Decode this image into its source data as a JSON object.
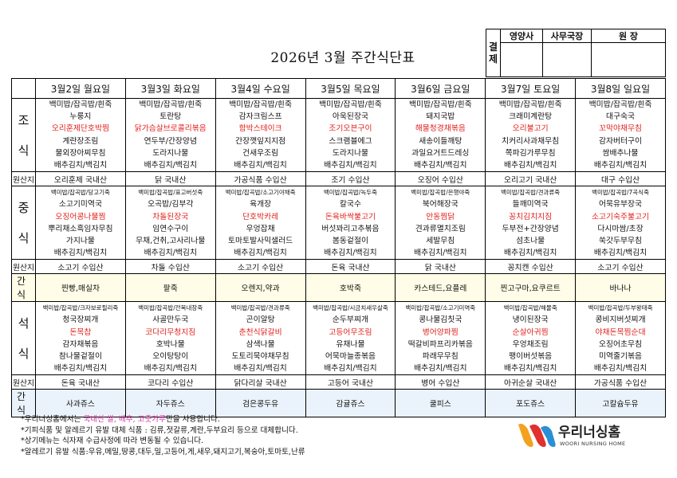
{
  "title": "2026년 3월 주간식단표",
  "approval": {
    "label": "결 제",
    "roles": [
      "영양사",
      "사무국장",
      "원 장"
    ]
  },
  "days": [
    "3월2일 월요일",
    "3월3일 화요일",
    "3월4일 수요일",
    "3월5일 목요일",
    "3월6일 금요일",
    "3월7일 토요일",
    "3월8일 일요일"
  ],
  "meals": {
    "breakfast": {
      "label": [
        "조",
        "식"
      ],
      "cols": [
        [
          {
            "t": "백미밥/잡곡밥/흰죽"
          },
          {
            "t": "누룽지"
          },
          {
            "t": "오리훈제단호박찜",
            "red": true
          },
          {
            "t": "계란장조림"
          },
          {
            "t": "물외장아찌무침"
          },
          {
            "t": "배추김치/백김치"
          }
        ],
        [
          {
            "t": "백미밥/잡곡밥/흰죽"
          },
          {
            "t": "토란탕"
          },
          {
            "t": "닭가슴살브로콜리볶음",
            "red": true
          },
          {
            "t": "연두부/간장양념"
          },
          {
            "t": "도라지나물"
          },
          {
            "t": "배추김치/백김치"
          }
        ],
        [
          {
            "t": "백미밥/잡곡밥/흰죽"
          },
          {
            "t": "감자크림스프"
          },
          {
            "t": "함박스테이크",
            "red": true
          },
          {
            "t": "간장깻잎지지점"
          },
          {
            "t": "건새우조림"
          },
          {
            "t": "배추김치/백김치"
          }
        ],
        [
          {
            "t": "백미밥/잡곡밥/흰죽"
          },
          {
            "t": "아욱된장국"
          },
          {
            "t": "조기오븐구이",
            "red": true
          },
          {
            "t": "스크램블에그"
          },
          {
            "t": "도라지나물"
          },
          {
            "t": "배추김치/백김치"
          }
        ],
        [
          {
            "t": "백미밥/잡곡밥/흰죽"
          },
          {
            "t": "돼지국밥"
          },
          {
            "t": "해물청경채볶음",
            "red": true
          },
          {
            "t": "새송이들깨탕"
          },
          {
            "t": "과일요거트드레싱"
          },
          {
            "t": "배추김치/백김치"
          }
        ],
        [
          {
            "t": "백미밥/잡곡밥/흰죽"
          },
          {
            "t": "크래미계란탕"
          },
          {
            "t": "오리불고기",
            "red": true
          },
          {
            "t": "치커리사과채무침"
          },
          {
            "t": "쪽파김가루무침"
          },
          {
            "t": "배추김치/백김치"
          }
        ],
        [
          {
            "t": "백미밥/잡곡밥/흰죽"
          },
          {
            "t": "대구숙국"
          },
          {
            "t": "꼬막야채무침",
            "red": true
          },
          {
            "t": "감자버터구이"
          },
          {
            "t": "쌈배추나물"
          },
          {
            "t": "배추김치/백김치"
          }
        ]
      ],
      "origin": [
        "오리훈제 국내산",
        "닭 국내산",
        "가공식품 수입산",
        "조기 수입산",
        "오징어 수입산",
        "오리고기 국내산",
        "대구 수입산"
      ]
    },
    "lunch": {
      "label": [
        "중",
        "식"
      ],
      "cols": [
        [
          {
            "t": "백미밥/잡곡밥/당고기죽",
            "small": true
          },
          {
            "t": "소고기미역국"
          },
          {
            "t": "오징어콩나물찜",
            "red": true
          },
          {
            "t": "뿌리채소흑임자무침"
          },
          {
            "t": "가지나물"
          },
          {
            "t": "배추김치/백김치"
          }
        ],
        [
          {
            "t": "백미밥/잡곡밥/표고버섯죽",
            "small": true
          },
          {
            "t": "오곡밥/김부각"
          },
          {
            "t": "차돌된장국",
            "red": true
          },
          {
            "t": "임연수구이"
          },
          {
            "t": "무채,건취,고사리나물"
          },
          {
            "t": "배추김치/백김치"
          }
        ],
        [
          {
            "t": "백미밥/잡곡밥/소고기야채죽",
            "small": true
          },
          {
            "t": "육개장"
          },
          {
            "t": "단호박카레",
            "red": true
          },
          {
            "t": "우엉잡채"
          },
          {
            "t": "토마토발사믹샐러드",
            "small": false
          },
          {
            "t": "배추김치/백김치"
          }
        ],
        [
          {
            "t": "백미밥/잡곡밥/녹두죽",
            "small": true
          },
          {
            "t": "칼국수"
          },
          {
            "t": "돈육바싹불고기",
            "red": true
          },
          {
            "t": "버섯꽈리고추볶음"
          },
          {
            "t": "봄동겉절이"
          },
          {
            "t": "배추김치/백김치"
          }
        ],
        [
          {
            "t": "백미밥/잡곡밥/은행야죽",
            "small": true
          },
          {
            "t": "북어해장국"
          },
          {
            "t": "안동찜닭",
            "red": true
          },
          {
            "t": "견과류멸치조림"
          },
          {
            "t": "세발무침"
          },
          {
            "t": "배추김치/백김치"
          }
        ],
        [
          {
            "t": "백미밥/잡곡밥/견과류죽",
            "small": true
          },
          {
            "t": "들깨미역국"
          },
          {
            "t": "꽁치김치지짐",
            "red": true
          },
          {
            "t": "두부전+간장양념"
          },
          {
            "t": "섬초나물"
          },
          {
            "t": "배추김치/백김치"
          }
        ],
        [
          {
            "t": "백미밥/잡곡밥/7곡식죽",
            "small": true
          },
          {
            "t": "어묵유부장국"
          },
          {
            "t": "소고기숙주불고기",
            "red": true
          },
          {
            "t": "다시마쌈/초장"
          },
          {
            "t": "쑥갓두부무침"
          },
          {
            "t": "배추김치/백김치"
          }
        ]
      ],
      "origin": [
        "소고기 수입산",
        "차돌 수입산",
        "소고기 수입산",
        "돈육 국내산",
        "닭 국내산",
        "꽁치캔 수입산",
        "소고기 수입산"
      ]
    },
    "dinner": {
      "label": [
        "석",
        "식"
      ],
      "cols": [
        [
          {
            "t": "백미밥/잡곡밥/크자보로필리죽",
            "small": true
          },
          {
            "t": "청국장찌개"
          },
          {
            "t": "돈목찹",
            "red": true
          },
          {
            "t": "감자채볶음"
          },
          {
            "t": "참나물겉절이"
          },
          {
            "t": "배추김치/백김치"
          }
        ],
        [
          {
            "t": "백미밥/잡곡밥/전복내장죽",
            "small": true
          },
          {
            "t": "사골만두국"
          },
          {
            "t": "코다리무청지짐",
            "red": true
          },
          {
            "t": "호박나물"
          },
          {
            "t": "오이탕탕이"
          },
          {
            "t": "배추김치/백김치"
          }
        ],
        [
          {
            "t": "백미밥/잡곡밥/견과류죽",
            "small": true
          },
          {
            "t": "곤이알탕"
          },
          {
            "t": "춘천식닭갈비",
            "red": true
          },
          {
            "t": "삼색나물"
          },
          {
            "t": "도토리묵야채무침"
          },
          {
            "t": "배추김치/백김치"
          }
        ],
        [
          {
            "t": "백미밥/잡곡밥/시금치새우살죽",
            "small": true
          },
          {
            "t": "순두부찌개"
          },
          {
            "t": "고등어무조림",
            "red": true
          },
          {
            "t": "유채나물"
          },
          {
            "t": "어묵마늘종볶음"
          },
          {
            "t": "배추김치/백김치"
          }
        ],
        [
          {
            "t": "백미밥/잡곡밥/소고기미역죽",
            "small": true
          },
          {
            "t": "콩나물김칫국"
          },
          {
            "t": "병어양파찜",
            "red": true
          },
          {
            "t": "떡갈비파프리카볶음"
          },
          {
            "t": "파래무무침"
          },
          {
            "t": "배추김치/백김치"
          }
        ],
        [
          {
            "t": "백미밥/잡곡밥/해물죽",
            "small": true
          },
          {
            "t": "냉이된장국"
          },
          {
            "t": "순살아귀찜",
            "red": true
          },
          {
            "t": "우엉채조림"
          },
          {
            "t": "팽이버섯볶음"
          },
          {
            "t": "배추김치/백김치"
          }
        ],
        [
          {
            "t": "백미밥/잡곡밥/두부왕태죽",
            "small": true
          },
          {
            "t": "콩비지버섯찌개"
          },
          {
            "t": "야채돈목찜순대",
            "red": true
          },
          {
            "t": "오징어초무침"
          },
          {
            "t": "미역줄기볶음"
          },
          {
            "t": "배추김치/백김치"
          }
        ]
      ],
      "origin": [
        "돈육 국내산",
        "코다리 수입산",
        "닭다리살 국내산",
        "고등어 국내산",
        "병어 수입산",
        "아귀순살 국내산",
        "가공식품 수입산"
      ]
    }
  },
  "origin_label": "원산지",
  "snack_label": "간 식",
  "snack1": [
    "찐빵,매실차",
    "팥죽",
    "오렌지,약과",
    "호박죽",
    "카스테드,요플레",
    "찐고구마,요쿠르트",
    "바나나"
  ],
  "snack2": [
    "사과쥬스",
    "자두쥬스",
    "검은콩두유",
    "감귤쥬스",
    "쿨피스",
    "포도쥬스",
    "고칼슘두유"
  ],
  "notes": {
    "line1_pre": "*우리너싱홈에서는 ",
    "line1_pink": "국내산 쌀, 배추, 고춧가루",
    "line1_post": "만을 사용합니다.",
    "line2": "*기피식품 및 알레르기 유발 대체 식품 : 김류,젓갈류,계란,두부요리 등으로 대체합니다.",
    "line3": "*상기메뉴는 식자재 수급사정에 따라 변동될 수 있습니다.",
    "line4": "*알레르기 유발 식품:우유,메밀,땅콩,대두,밀,고등어,게,새우,돼지고기,복숭아,토마토,난류"
  },
  "logo": {
    "name": "우리너싱홈",
    "sub": "WOORI NURSING HOME",
    "colors": [
      "#f4a21e",
      "#e0312f",
      "#2a8fd6"
    ]
  }
}
